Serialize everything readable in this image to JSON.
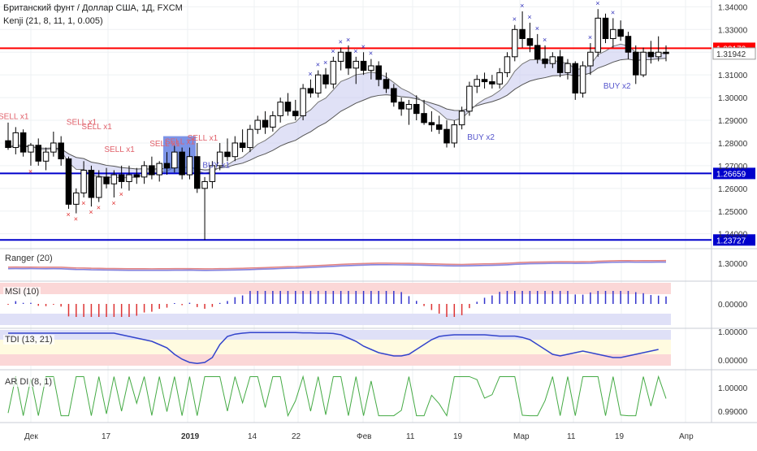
{
  "header": {
    "title": "Британский фунт / Доллар США, 1Д, FXCM",
    "indicator": "Kenji (21, 8, 11, 1, 0.005)"
  },
  "colors": {
    "up": "#ffffff",
    "down": "#000000",
    "wick": "#000000",
    "hline_red": "#ff0000",
    "hline_blue": "#0000cc",
    "sell": "#e0606a",
    "buy": "#5555cc"
  },
  "chart_data": {
    "type": "candlestick",
    "x_ticks": [
      "Дек",
      "17",
      "2019",
      "14",
      "22",
      "Фев",
      "11",
      "19",
      "Мар",
      "11",
      "19",
      "Апр"
    ],
    "y_ticks": [
      "1.34000",
      "1.33000",
      "1.31000",
      "1.30000",
      "1.29000",
      "1.28000",
      "1.27000",
      "1.26000",
      "1.25000",
      "1.24000"
    ],
    "ylim": [
      1.2338,
      1.343
    ],
    "horizontal_levels": [
      {
        "label": "1.32172",
        "value": 1.32172,
        "color": "#ff0000"
      },
      {
        "label": "1.26659",
        "value": 1.26659,
        "color": "#0000cc"
      },
      {
        "label": "1.23727",
        "value": 1.23727,
        "color": "#0000cc"
      }
    ],
    "last_price_label": "1.31942",
    "last_price": 1.31942,
    "candles": [
      [
        1.281,
        1.289,
        1.277,
        1.278
      ],
      [
        1.278,
        1.287,
        1.275,
        1.2845
      ],
      [
        1.2845,
        1.286,
        1.274,
        1.276
      ],
      [
        1.276,
        1.28,
        1.27,
        1.279
      ],
      [
        1.279,
        1.282,
        1.27,
        1.272
      ],
      [
        1.272,
        1.278,
        1.268,
        1.276
      ],
      [
        1.276,
        1.285,
        1.274,
        1.28
      ],
      [
        1.28,
        1.283,
        1.27,
        1.273
      ],
      [
        1.273,
        1.274,
        1.251,
        1.253
      ],
      [
        1.253,
        1.26,
        1.249,
        1.258
      ],
      [
        1.258,
        1.272,
        1.256,
        1.268
      ],
      [
        1.268,
        1.27,
        1.252,
        1.256
      ],
      [
        1.256,
        1.268,
        1.254,
        1.265
      ],
      [
        1.265,
        1.269,
        1.26,
        1.262
      ],
      [
        1.262,
        1.268,
        1.256,
        1.266
      ],
      [
        1.266,
        1.27,
        1.26,
        1.263
      ],
      [
        1.263,
        1.27,
        1.259,
        1.266
      ],
      [
        1.266,
        1.269,
        1.262,
        1.265
      ],
      [
        1.265,
        1.272,
        1.262,
        1.27
      ],
      [
        1.27,
        1.274,
        1.264,
        1.266
      ],
      [
        1.266,
        1.272,
        1.263,
        1.271
      ],
      [
        1.271,
        1.276,
        1.266,
        1.269
      ],
      [
        1.269,
        1.279,
        1.267,
        1.276
      ],
      [
        1.276,
        1.278,
        1.264,
        1.266
      ],
      [
        1.266,
        1.278,
        1.264,
        1.274
      ],
      [
        1.274,
        1.28,
        1.258,
        1.26
      ],
      [
        1.26,
        1.265,
        1.2373,
        1.263
      ],
      [
        1.263,
        1.272,
        1.26,
        1.27
      ],
      [
        1.27,
        1.28,
        1.268,
        1.276
      ],
      [
        1.276,
        1.282,
        1.272,
        1.274
      ],
      [
        1.274,
        1.283,
        1.272,
        1.28
      ],
      [
        1.28,
        1.286,
        1.276,
        1.278
      ],
      [
        1.278,
        1.288,
        1.276,
        1.286
      ],
      [
        1.286,
        1.292,
        1.284,
        1.29
      ],
      [
        1.29,
        1.294,
        1.284,
        1.287
      ],
      [
        1.287,
        1.294,
        1.285,
        1.292
      ],
      [
        1.292,
        1.3,
        1.289,
        1.298
      ],
      [
        1.298,
        1.302,
        1.292,
        1.294
      ],
      [
        1.294,
        1.299,
        1.29,
        1.292
      ],
      [
        1.292,
        1.306,
        1.29,
        1.304
      ],
      [
        1.304,
        1.308,
        1.3,
        1.302
      ],
      [
        1.302,
        1.312,
        1.3,
        1.31
      ],
      [
        1.31,
        1.313,
        1.304,
        1.306
      ],
      [
        1.306,
        1.318,
        1.304,
        1.316
      ],
      [
        1.316,
        1.322,
        1.312,
        1.32
      ],
      [
        1.32,
        1.323,
        1.31,
        1.313
      ],
      [
        1.313,
        1.318,
        1.306,
        1.316
      ],
      [
        1.316,
        1.32,
        1.31,
        1.312
      ],
      [
        1.312,
        1.317,
        1.308,
        1.314
      ],
      [
        1.314,
        1.316,
        1.305,
        1.308
      ],
      [
        1.308,
        1.311,
        1.302,
        1.304
      ],
      [
        1.304,
        1.306,
        1.296,
        1.298
      ],
      [
        1.298,
        1.3,
        1.292,
        1.295
      ],
      [
        1.295,
        1.299,
        1.288,
        1.297
      ],
      [
        1.297,
        1.301,
        1.29,
        1.293
      ],
      [
        1.293,
        1.299,
        1.288,
        1.289
      ],
      [
        1.289,
        1.294,
        1.285,
        1.288
      ],
      [
        1.288,
        1.292,
        1.284,
        1.286
      ],
      [
        1.286,
        1.29,
        1.278,
        1.28
      ],
      [
        1.28,
        1.29,
        1.278,
        1.288
      ],
      [
        1.288,
        1.296,
        1.286,
        1.294
      ],
      [
        1.294,
        1.307,
        1.292,
        1.305
      ],
      [
        1.305,
        1.31,
        1.302,
        1.308
      ],
      [
        1.308,
        1.311,
        1.304,
        1.307
      ],
      [
        1.307,
        1.31,
        1.304,
        1.306
      ],
      [
        1.306,
        1.313,
        1.304,
        1.311
      ],
      [
        1.311,
        1.32,
        1.309,
        1.318
      ],
      [
        1.318,
        1.332,
        1.316,
        1.33
      ],
      [
        1.33,
        1.338,
        1.322,
        1.326
      ],
      [
        1.326,
        1.333,
        1.32,
        1.323
      ],
      [
        1.323,
        1.328,
        1.315,
        1.317
      ],
      [
        1.317,
        1.323,
        1.313,
        1.315
      ],
      [
        1.315,
        1.32,
        1.313,
        1.318
      ],
      [
        1.318,
        1.321,
        1.309,
        1.311
      ],
      [
        1.311,
        1.317,
        1.308,
        1.315
      ],
      [
        1.315,
        1.316,
        1.299,
        1.302
      ],
      [
        1.302,
        1.316,
        1.3,
        1.314
      ],
      [
        1.314,
        1.324,
        1.31,
        1.32
      ],
      [
        1.32,
        1.339,
        1.318,
        1.335
      ],
      [
        1.335,
        1.337,
        1.324,
        1.326
      ],
      [
        1.326,
        1.335,
        1.322,
        1.33
      ],
      [
        1.33,
        1.334,
        1.325,
        1.327
      ],
      [
        1.327,
        1.329,
        1.317,
        1.32
      ],
      [
        1.32,
        1.323,
        1.306,
        1.31
      ],
      [
        1.31,
        1.322,
        1.309,
        1.32
      ],
      [
        1.32,
        1.325,
        1.315,
        1.318
      ],
      [
        1.318,
        1.327,
        1.316,
        1.32
      ],
      [
        1.32,
        1.323,
        1.316,
        1.3194
      ]
    ],
    "signals": [
      {
        "label": "SELL x1"
      },
      {
        "label": "SELL x1"
      },
      {
        "label": "SELL x1"
      },
      {
        "label": "SELL x1"
      },
      {
        "label": "SELL x1"
      },
      {
        "label": "SELL x1"
      },
      {
        "label": "SELL x1"
      },
      {
        "label": "BUY x1"
      },
      {
        "label": "BUY x2"
      },
      {
        "label": "BUY x2"
      }
    ],
    "subpanes": [
      {
        "label": "Ranger (20)",
        "y_ticks": [
          "1.30000"
        ]
      },
      {
        "label": "MSI (10)",
        "y_ticks": [
          "0.00000"
        ]
      },
      {
        "label": "TDI (13, 21)",
        "y_ticks": [
          "1.00000",
          "0.00000"
        ]
      },
      {
        "label": "AR DI (8, 1)",
        "y_ticks": [
          "1.00000",
          "0.99000"
        ]
      }
    ]
  }
}
